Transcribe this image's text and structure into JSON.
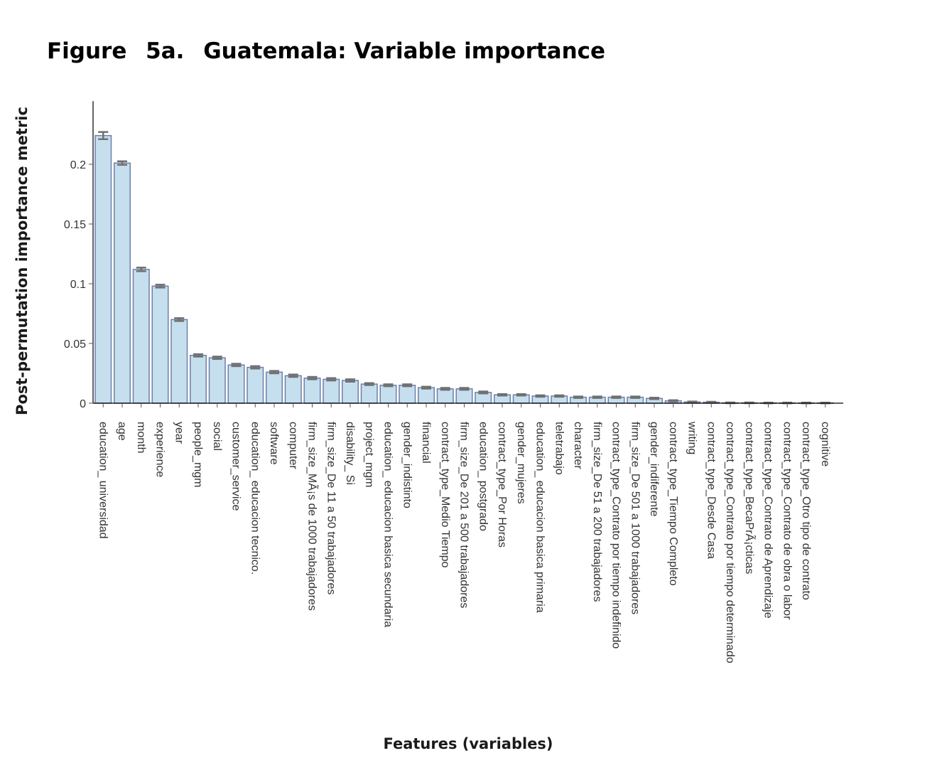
{
  "figure": {
    "label": "Figure",
    "number": "5a.",
    "title": "Guatemala: Variable importance"
  },
  "chart_data": {
    "type": "bar",
    "xlabel": "Features (variables)",
    "ylabel": "Post-permutation importance metric",
    "ylim": [
      0,
      0.235
    ],
    "yticks": [
      {
        "value": 0,
        "label": "0"
      },
      {
        "value": 0.05,
        "label": "0.05"
      },
      {
        "value": 0.1,
        "label": "0.1"
      },
      {
        "value": 0.15,
        "label": "0.15"
      },
      {
        "value": 0.2,
        "label": "0.2"
      }
    ],
    "categories": [
      "education_ universidad",
      "age",
      "month",
      "experience",
      "year",
      "people_mgm",
      "social",
      "customer_service",
      "education_ educacion tecnico.",
      "software",
      "computer",
      "firm_size_MÃ¡s de 1000 trabajadores",
      "firm_size_De 11 a 50 trabajadores",
      "disability_ Si",
      "project_mgm",
      "education_ educacion basica secundaria",
      "gender_indistinto",
      "financial",
      "contract_type_Medio Tiempo",
      "firm_size_De 201 a 500 trabajadores",
      "education_ postgrado",
      "contract_type_Por Horas",
      "gender_mujeres",
      "education_ educacion basica primaria",
      "teletrabajo",
      "character",
      "firm_size_De 51 a 200 trabajadores",
      "contract_type_Contrato por tiempo indefinido",
      "firm_size_De 501 a 1000 trabajadores",
      "gender_indiferente",
      "contract_type_Tiempo Completo",
      "writing",
      "contract_type_Desde Casa",
      "contract_type_Contrato por tiempo determinado",
      "contract_type_BecaPrÃ¡cticas",
      "contract_type_Contrato de Aprendizaje",
      "contract_type_Contrato de obra o labor",
      "contract_type_Otro tipo de contrato",
      "cognitive"
    ],
    "values": [
      0.224,
      0.201,
      0.112,
      0.098,
      0.07,
      0.04,
      0.038,
      0.032,
      0.03,
      0.026,
      0.023,
      0.021,
      0.02,
      0.019,
      0.016,
      0.015,
      0.015,
      0.013,
      0.012,
      0.012,
      0.009,
      0.007,
      0.007,
      0.006,
      0.006,
      0.005,
      0.005,
      0.005,
      0.005,
      0.004,
      0.002,
      0.001,
      0.0008,
      0.0003,
      0.0003,
      0.0002,
      0.0002,
      0.0002,
      0.0002
    ],
    "errors": [
      0.003,
      0.0015,
      0.0015,
      0.0012,
      0.0012,
      0.001,
      0.001,
      0.001,
      0.001,
      0.001,
      0.001,
      0.001,
      0.001,
      0.001,
      0.0008,
      0.0008,
      0.0008,
      0.0008,
      0.0008,
      0.0008,
      0.0008,
      0.0006,
      0.0006,
      0.0006,
      0.0006,
      0.0006,
      0.0006,
      0.0006,
      0.0006,
      0.0006,
      0.0005,
      0.0004,
      0.0004,
      0.0003,
      0.0003,
      0.0003,
      0.0003,
      0.0003,
      0.0003
    ],
    "grid": false,
    "legend": "none",
    "colors": {
      "bar_fill": "#c6dfee",
      "bar_stroke": "#6f7fa8",
      "error_bar": "#707070"
    }
  }
}
